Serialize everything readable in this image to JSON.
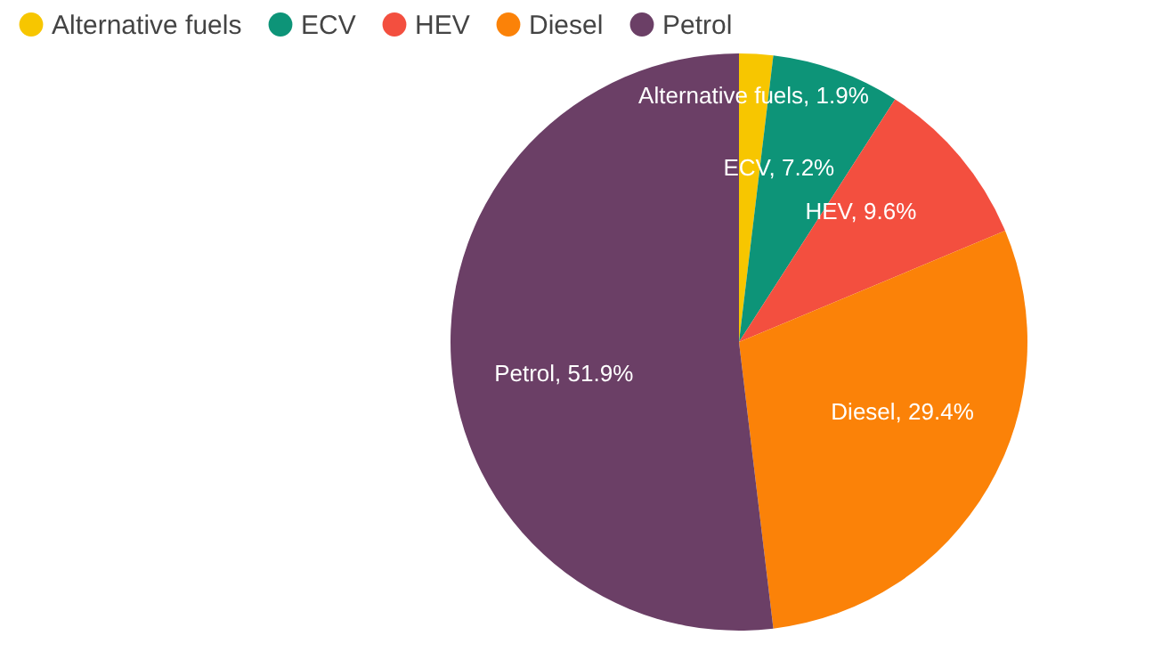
{
  "chart_data": {
    "type": "pie",
    "categories": [
      "Alternative fuels",
      "ECV",
      "HEV",
      "Diesel",
      "Petrol"
    ],
    "values": [
      1.9,
      7.2,
      9.6,
      29.4,
      51.9
    ],
    "colors": [
      "#f7c600",
      "#0d9478",
      "#f34f3f",
      "#fb8208",
      "#6b3f66"
    ],
    "value_labels": [
      "Alternative fuels, 1.9%",
      "ECV, 7.2%",
      "HEV, 9.6%",
      "Diesel, 29.4%",
      "Petrol, 51.9%"
    ],
    "legend": "top left"
  }
}
